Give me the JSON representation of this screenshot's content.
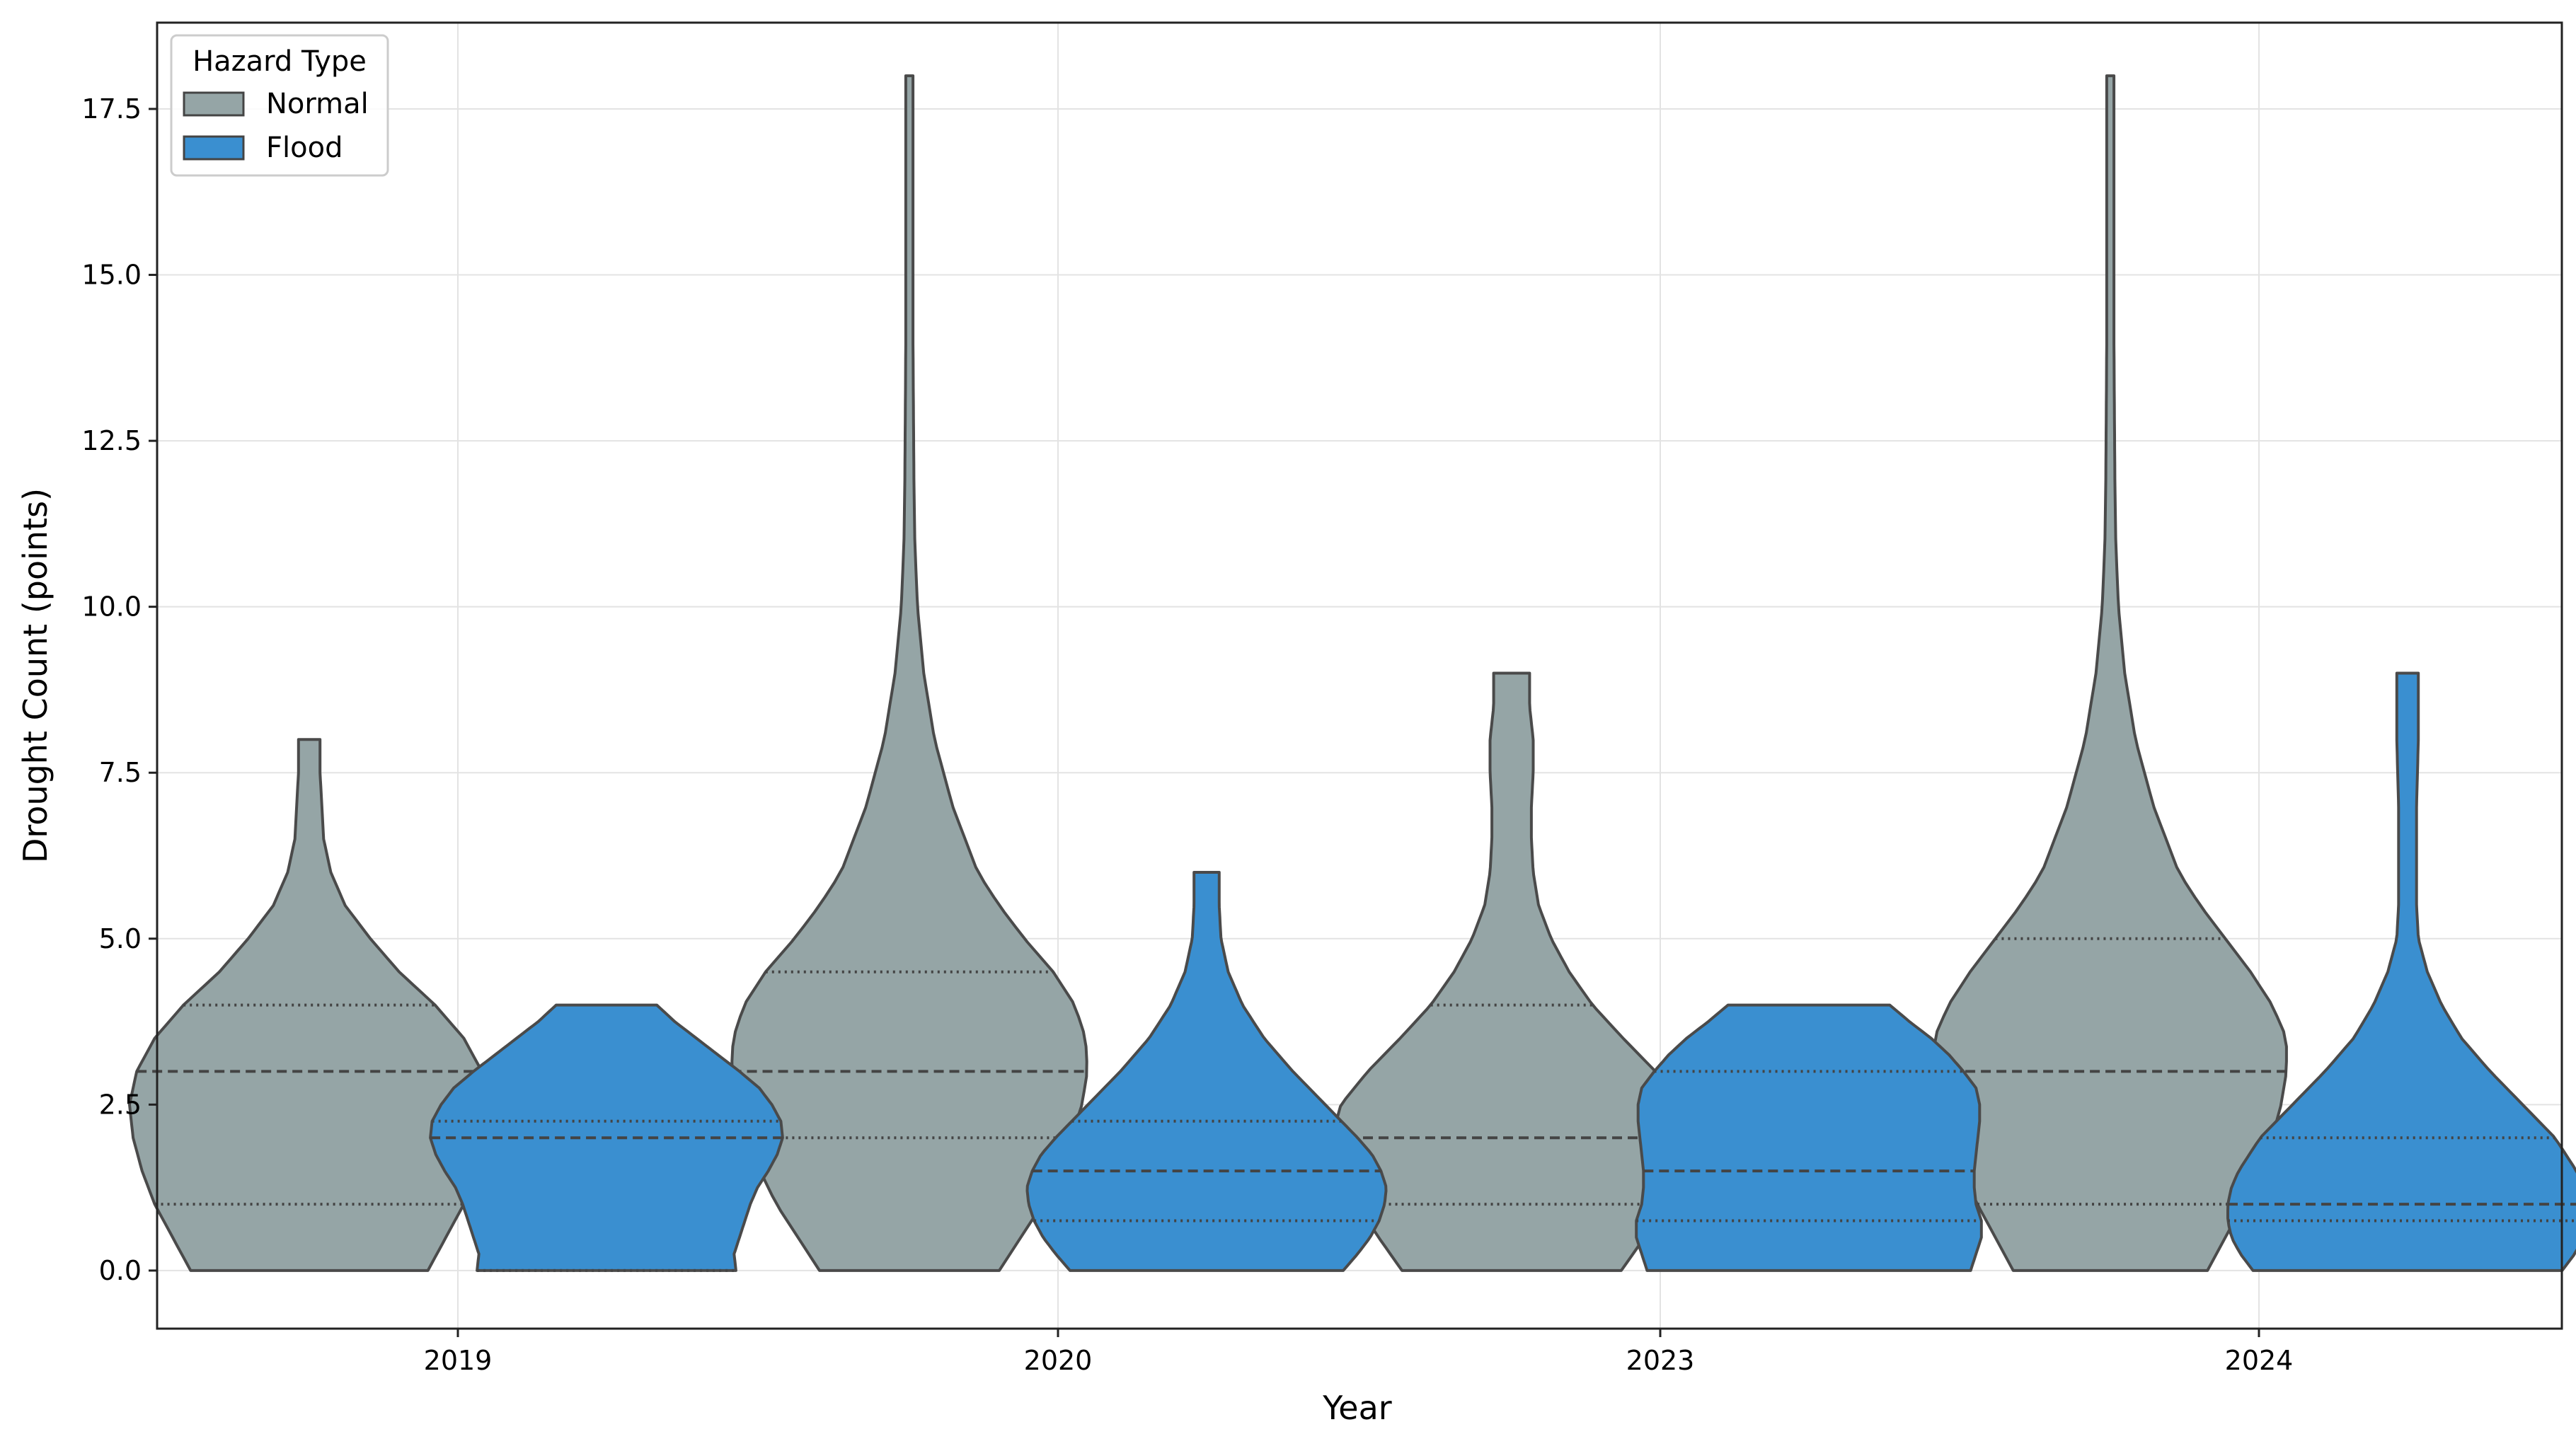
{
  "chart_data": {
    "type": "violin",
    "title": "",
    "xlabel": "Year",
    "ylabel": "Drought Count (points)",
    "categories": [
      "2019",
      "2020",
      "2023",
      "2024"
    ],
    "ylim": [
      -0.875,
      18.8
    ],
    "yticks": [
      "0.0",
      "2.5",
      "5.0",
      "7.5",
      "10.0",
      "12.5",
      "15.0",
      "17.5"
    ],
    "grid": true,
    "legend": {
      "title": "Hazard Type",
      "placement": "top-left"
    },
    "inner": "quartile",
    "series": [
      {
        "name": "Normal",
        "color": "#95a5a6",
        "groups": [
          {
            "min": 0,
            "max": 8,
            "q1": 1.0,
            "median": 3.0,
            "q3": 4.0,
            "density": [
              [
                0,
                0.66
              ],
              [
                0.5,
                0.76
              ],
              [
                1,
                0.86
              ],
              [
                1.5,
                0.93
              ],
              [
                2,
                0.98
              ],
              [
                2.5,
                1.0
              ],
              [
                3,
                0.96
              ],
              [
                3.5,
                0.86
              ],
              [
                4,
                0.7
              ],
              [
                4.5,
                0.5
              ],
              [
                5,
                0.34
              ],
              [
                5.5,
                0.2
              ],
              [
                6,
                0.12
              ],
              [
                6.5,
                0.08
              ],
              [
                7,
                0.07
              ],
              [
                7.5,
                0.06
              ],
              [
                8,
                0.06
              ]
            ]
          },
          {
            "min": 0,
            "max": 18,
            "q1": 2.0,
            "median": 3.0,
            "q3": 4.5,
            "density": [
              [
                0,
                0.5
              ],
              [
                0.5,
                0.62
              ],
              [
                1,
                0.74
              ],
              [
                1.5,
                0.83
              ],
              [
                2,
                0.9
              ],
              [
                2.5,
                0.96
              ],
              [
                3,
                0.99
              ],
              [
                3.5,
                0.98
              ],
              [
                4,
                0.92
              ],
              [
                4.5,
                0.8
              ],
              [
                5,
                0.64
              ],
              [
                5.5,
                0.5
              ],
              [
                6,
                0.38
              ],
              [
                7,
                0.24
              ],
              [
                8,
                0.14
              ],
              [
                9,
                0.08
              ],
              [
                10,
                0.045
              ],
              [
                11,
                0.03
              ],
              [
                12,
                0.025
              ],
              [
                14,
                0.02
              ],
              [
                16,
                0.02
              ],
              [
                18,
                0.02
              ]
            ]
          },
          {
            "min": 0,
            "max": 9,
            "q1": 1.0,
            "median": 2.0,
            "q3": 4.0,
            "density": [
              [
                0,
                0.61
              ],
              [
                0.5,
                0.74
              ],
              [
                1,
                0.86
              ],
              [
                1.5,
                0.96
              ],
              [
                2,
                1.0
              ],
              [
                2.5,
                0.95
              ],
              [
                3,
                0.8
              ],
              [
                3.5,
                0.62
              ],
              [
                4,
                0.45
              ],
              [
                4.5,
                0.32
              ],
              [
                5,
                0.22
              ],
              [
                5.5,
                0.15
              ],
              [
                6,
                0.12
              ],
              [
                6.5,
                0.11
              ],
              [
                7,
                0.11
              ],
              [
                7.5,
                0.12
              ],
              [
                8,
                0.12
              ],
              [
                8.5,
                0.1
              ],
              [
                9,
                0.1
              ]
            ]
          },
          {
            "min": 0,
            "max": 18,
            "q1": 1.0,
            "median": 3.0,
            "q3": 5.0,
            "density": [
              [
                0,
                0.54
              ],
              [
                0.5,
                0.64
              ],
              [
                1,
                0.74
              ],
              [
                1.5,
                0.83
              ],
              [
                2,
                0.9
              ],
              [
                2.5,
                0.95
              ],
              [
                3,
                0.98
              ],
              [
                3.5,
                0.98
              ],
              [
                4,
                0.9
              ],
              [
                4.5,
                0.78
              ],
              [
                5,
                0.64
              ],
              [
                5.5,
                0.5
              ],
              [
                6,
                0.38
              ],
              [
                7,
                0.24
              ],
              [
                8,
                0.14
              ],
              [
                9,
                0.08
              ],
              [
                10,
                0.045
              ],
              [
                11,
                0.03
              ],
              [
                12,
                0.025
              ],
              [
                14,
                0.02
              ],
              [
                16,
                0.02
              ],
              [
                18,
                0.02
              ]
            ]
          }
        ]
      },
      {
        "name": "Flood",
        "color": "#3a8fd0",
        "groups": [
          {
            "min": 0,
            "max": 4,
            "q1": 0.0,
            "median": 2.0,
            "q3": 2.25,
            "density": [
              [
                0,
                0.72
              ],
              [
                0.25,
                0.71
              ],
              [
                0.5,
                0.74
              ],
              [
                0.75,
                0.77
              ],
              [
                1,
                0.8
              ],
              [
                1.25,
                0.84
              ],
              [
                1.5,
                0.9
              ],
              [
                1.75,
                0.95
              ],
              [
                2,
                0.98
              ],
              [
                2.25,
                0.97
              ],
              [
                2.5,
                0.92
              ],
              [
                2.75,
                0.85
              ],
              [
                3,
                0.74
              ],
              [
                3.25,
                0.62
              ],
              [
                3.5,
                0.5
              ],
              [
                3.75,
                0.38
              ],
              [
                4,
                0.28
              ]
            ]
          },
          {
            "min": 0,
            "max": 6,
            "q1": 0.75,
            "median": 1.5,
            "q3": 2.25,
            "density": [
              [
                0,
                0.76
              ],
              [
                0.25,
                0.84
              ],
              [
                0.5,
                0.91
              ],
              [
                0.75,
                0.96
              ],
              [
                1,
                0.99
              ],
              [
                1.25,
                1.0
              ],
              [
                1.5,
                0.97
              ],
              [
                1.75,
                0.92
              ],
              [
                2,
                0.84
              ],
              [
                2.5,
                0.66
              ],
              [
                3,
                0.48
              ],
              [
                3.5,
                0.32
              ],
              [
                4,
                0.2
              ],
              [
                4.5,
                0.12
              ],
              [
                5,
                0.08
              ],
              [
                5.5,
                0.07
              ],
              [
                6,
                0.07
              ]
            ]
          },
          {
            "min": 0,
            "max": 4,
            "q1": 0.75,
            "median": 1.5,
            "q3": 3.0,
            "density": [
              [
                0,
                0.9
              ],
              [
                0.25,
                0.93
              ],
              [
                0.5,
                0.96
              ],
              [
                0.75,
                0.96
              ],
              [
                1,
                0.93
              ],
              [
                1.25,
                0.92
              ],
              [
                1.5,
                0.92
              ],
              [
                1.75,
                0.93
              ],
              [
                2,
                0.94
              ],
              [
                2.25,
                0.95
              ],
              [
                2.5,
                0.95
              ],
              [
                2.75,
                0.93
              ],
              [
                3,
                0.86
              ],
              [
                3.25,
                0.78
              ],
              [
                3.5,
                0.68
              ],
              [
                3.75,
                0.56
              ],
              [
                4,
                0.45
              ]
            ]
          },
          {
            "min": 0,
            "max": 9,
            "q1": 0.75,
            "median": 1.0,
            "q3": 2.0,
            "density": [
              [
                0,
                0.86
              ],
              [
                0.25,
                0.93
              ],
              [
                0.5,
                0.98
              ],
              [
                0.75,
                1.0
              ],
              [
                1,
                1.0
              ],
              [
                1.25,
                0.98
              ],
              [
                1.5,
                0.94
              ],
              [
                2,
                0.82
              ],
              [
                2.5,
                0.64
              ],
              [
                3,
                0.46
              ],
              [
                3.5,
                0.3
              ],
              [
                4,
                0.19
              ],
              [
                4.5,
                0.11
              ],
              [
                5,
                0.06
              ],
              [
                5.5,
                0.05
              ],
              [
                6,
                0.05
              ],
              [
                7,
                0.05
              ],
              [
                8,
                0.06
              ],
              [
                9,
                0.06
              ]
            ]
          }
        ]
      }
    ]
  }
}
